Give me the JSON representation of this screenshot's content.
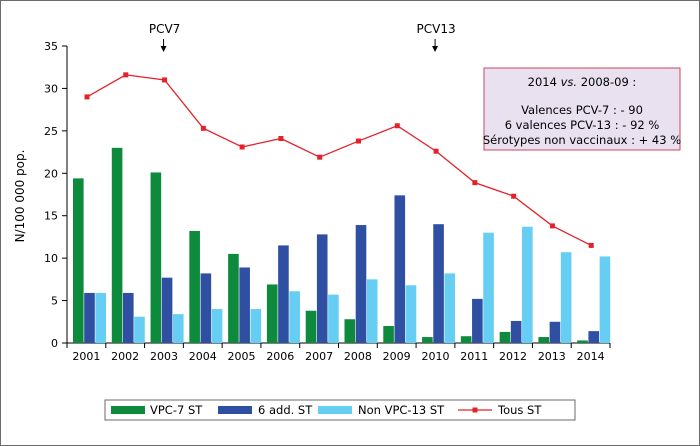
{
  "chart_data": {
    "type": "bar",
    "ylabel": "N/100 000 pop.",
    "ylim": [
      0,
      35
    ],
    "yticks": [
      0,
      5,
      10,
      15,
      20,
      25,
      30,
      35
    ],
    "categories": [
      "2001",
      "2002",
      "2003",
      "2004",
      "2005",
      "2006",
      "2007",
      "2008",
      "2009",
      "2010",
      "2011",
      "2012",
      "2013",
      "2014"
    ],
    "series": [
      {
        "name": "VPC-7 ST",
        "kind": "bar",
        "color": "#0d8a3c",
        "values": [
          19.4,
          23.0,
          20.1,
          13.2,
          10.5,
          6.9,
          3.8,
          2.8,
          2.0,
          0.7,
          0.8,
          1.3,
          0.7,
          0.3
        ]
      },
      {
        "name": "6 add. ST",
        "kind": "bar",
        "color": "#2f4fa3",
        "values": [
          5.9,
          5.9,
          7.7,
          8.2,
          8.9,
          11.5,
          12.8,
          13.9,
          17.4,
          14.0,
          5.2,
          2.6,
          2.5,
          1.4
        ]
      },
      {
        "name": "Non VPC-13 ST",
        "kind": "bar",
        "color": "#66cdf3",
        "values": [
          5.9,
          3.1,
          3.4,
          4.0,
          4.0,
          6.1,
          5.7,
          7.5,
          6.8,
          8.2,
          13.0,
          13.7,
          10.7,
          10.2
        ]
      },
      {
        "name": "Tous ST",
        "kind": "line",
        "color": "#e3222b",
        "values": [
          29.0,
          31.6,
          31.0,
          25.3,
          23.1,
          24.1,
          21.9,
          23.8,
          25.6,
          22.6,
          18.9,
          17.3,
          13.8,
          11.5
        ]
      }
    ],
    "annotations": [
      {
        "label": "PCV7",
        "category": "2003"
      },
      {
        "label": "PCV13",
        "category": "2010"
      }
    ],
    "note": {
      "title_year": "2014",
      "title_vs": "vs.",
      "title_rest": "2008-09 :",
      "lines": [
        "Valences PCV-7 : - 90",
        "6 valences PCV-13 : - 92 %",
        "Sérotypes non vaccinaux : + 43 %"
      ]
    },
    "legend_position": "bottom"
  }
}
